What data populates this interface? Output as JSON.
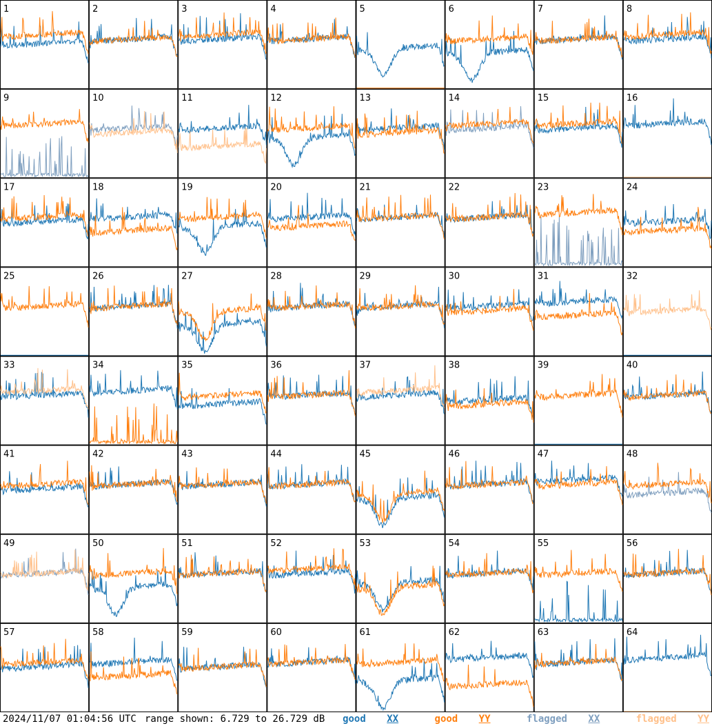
{
  "footer": {
    "timestamp": "2024/11/07 01:04:56 UTC",
    "range_text": "range shown: 6.729 to 26.729 dB",
    "legend": [
      {
        "label_a": "good ",
        "label_b": "XX",
        "color": "#1f77b4"
      },
      {
        "label_a": "good ",
        "label_b": "YY",
        "color": "#ff7f0e"
      },
      {
        "label_a": "flagged ",
        "label_b": "XX",
        "color": "#7f9fbf"
      },
      {
        "label_a": "flagged ",
        "label_b": "YY",
        "color": "#ffc08a"
      }
    ]
  },
  "chart_data": {
    "type": "line",
    "layout": "small-multiples 8x8",
    "ylim_db": [
      6.729,
      26.729
    ],
    "colors": {
      "good_xx": "#1f77b4",
      "good_yy": "#ff7f0e",
      "flagged_xx": "#7f9fbf",
      "flagged_yy": "#ffc08a"
    },
    "panels": [
      {
        "id": "1",
        "xx": "good",
        "yy": "good",
        "shape_xx": "normal",
        "shape_yy": "normal",
        "xx_level": 17,
        "yy_level": 19
      },
      {
        "id": "2",
        "xx": "good",
        "yy": "good",
        "shape_xx": "normal",
        "shape_yy": "normal",
        "xx_level": 18,
        "yy_level": 18
      },
      {
        "id": "3",
        "xx": "good",
        "yy": "good",
        "shape_xx": "normal",
        "shape_yy": "normal",
        "xx_level": 18,
        "yy_level": 19
      },
      {
        "id": "4",
        "xx": "good",
        "yy": "good",
        "shape_xx": "normal",
        "shape_yy": "normal",
        "xx_level": 18,
        "yy_level": 18
      },
      {
        "id": "5",
        "xx": "good",
        "yy": "good",
        "shape_xx": "dip",
        "shape_yy": "dead",
        "xx_level": 16,
        "yy_level": 7
      },
      {
        "id": "6",
        "xx": "good",
        "yy": "good",
        "shape_xx": "dip",
        "shape_yy": "normal",
        "xx_level": 15,
        "yy_level": 18
      },
      {
        "id": "7",
        "xx": "good",
        "yy": "good",
        "shape_xx": "normal",
        "shape_yy": "normal",
        "xx_level": 18,
        "yy_level": 18
      },
      {
        "id": "8",
        "xx": "good",
        "yy": "good",
        "shape_xx": "normal",
        "shape_yy": "normal",
        "xx_level": 18,
        "yy_level": 19
      },
      {
        "id": "9",
        "xx": "flagged",
        "yy": "good",
        "shape_xx": "spiky",
        "shape_yy": "normal",
        "xx_level": 8,
        "yy_level": 19
      },
      {
        "id": "10",
        "xx": "flagged",
        "yy": "flagged",
        "shape_xx": "normal",
        "shape_yy": "normal",
        "xx_level": 18,
        "yy_level": 17
      },
      {
        "id": "11",
        "xx": "good",
        "yy": "flagged",
        "shape_xx": "normal",
        "shape_yy": "normal",
        "xx_level": 18,
        "yy_level": 14
      },
      {
        "id": "12",
        "xx": "good",
        "yy": "good",
        "shape_xx": "dip",
        "shape_yy": "normal",
        "xx_level": 16,
        "yy_level": 18
      },
      {
        "id": "13",
        "xx": "good",
        "yy": "good",
        "shape_xx": "normal",
        "shape_yy": "normal",
        "xx_level": 18,
        "yy_level": 17
      },
      {
        "id": "14",
        "xx": "flagged",
        "yy": "good",
        "shape_xx": "normal",
        "shape_yy": "normal",
        "xx_level": 18,
        "yy_level": 19
      },
      {
        "id": "15",
        "xx": "good",
        "yy": "good",
        "shape_xx": "normal",
        "shape_yy": "normal",
        "xx_level": 18,
        "yy_level": 19
      },
      {
        "id": "16",
        "xx": "good",
        "yy": "flagged",
        "shape_xx": "normal",
        "shape_yy": "dead",
        "xx_level": 19,
        "yy_level": 7
      },
      {
        "id": "17",
        "xx": "good",
        "yy": "good",
        "shape_xx": "normal",
        "shape_yy": "normal",
        "xx_level": 17,
        "yy_level": 18
      },
      {
        "id": "18",
        "xx": "good",
        "yy": "good",
        "shape_xx": "normal",
        "shape_yy": "normal",
        "xx_level": 18,
        "yy_level": 15
      },
      {
        "id": "19",
        "xx": "good",
        "yy": "good",
        "shape_xx": "dip",
        "shape_yy": "normal",
        "xx_level": 16,
        "yy_level": 18
      },
      {
        "id": "20",
        "xx": "good",
        "yy": "good",
        "shape_xx": "normal",
        "shape_yy": "normal",
        "xx_level": 18,
        "yy_level": 16
      },
      {
        "id": "21",
        "xx": "good",
        "yy": "good",
        "shape_xx": "normal",
        "shape_yy": "normal",
        "xx_level": 18,
        "yy_level": 18
      },
      {
        "id": "22",
        "xx": "good",
        "yy": "good",
        "shape_xx": "normal",
        "shape_yy": "normal",
        "xx_level": 18,
        "yy_level": 18
      },
      {
        "id": "23",
        "xx": "flagged",
        "yy": "good",
        "shape_xx": "spiky",
        "shape_yy": "normal",
        "xx_level": 11,
        "yy_level": 19
      },
      {
        "id": "24",
        "xx": "good",
        "yy": "good",
        "shape_xx": "normal",
        "shape_yy": "normal",
        "xx_level": 17,
        "yy_level": 15
      },
      {
        "id": "25",
        "xx": "good",
        "yy": "good",
        "shape_xx": "dead",
        "shape_yy": "normal",
        "xx_level": 7,
        "yy_level": 18
      },
      {
        "id": "26",
        "xx": "good",
        "yy": "good",
        "shape_xx": "normal",
        "shape_yy": "normal",
        "xx_level": 18,
        "yy_level": 18
      },
      {
        "id": "27",
        "xx": "good",
        "yy": "good",
        "shape_xx": "dip",
        "shape_yy": "dip",
        "xx_level": 14,
        "yy_level": 17
      },
      {
        "id": "28",
        "xx": "good",
        "yy": "good",
        "shape_xx": "normal",
        "shape_yy": "normal",
        "xx_level": 18,
        "yy_level": 18
      },
      {
        "id": "29",
        "xx": "good",
        "yy": "good",
        "shape_xx": "normal",
        "shape_yy": "normal",
        "xx_level": 18,
        "yy_level": 18
      },
      {
        "id": "30",
        "xx": "good",
        "yy": "good",
        "shape_xx": "normal",
        "shape_yy": "normal",
        "xx_level": 18,
        "yy_level": 17
      },
      {
        "id": "31",
        "xx": "good",
        "yy": "good",
        "shape_xx": "normal",
        "shape_yy": "normal",
        "xx_level": 19,
        "yy_level": 16
      },
      {
        "id": "32",
        "xx": "good",
        "yy": "flagged",
        "shape_xx": "dead",
        "shape_yy": "normal",
        "xx_level": 7,
        "yy_level": 17
      },
      {
        "id": "33",
        "xx": "good",
        "yy": "flagged",
        "shape_xx": "normal",
        "shape_yy": "normal",
        "xx_level": 18,
        "yy_level": 19
      },
      {
        "id": "34",
        "xx": "good",
        "yy": "good",
        "shape_xx": "normal",
        "shape_yy": "spiky",
        "xx_level": 19,
        "yy_level": 8
      },
      {
        "id": "35",
        "xx": "good",
        "yy": "good",
        "shape_xx": "normal",
        "shape_yy": "normal",
        "xx_level": 16,
        "yy_level": 18
      },
      {
        "id": "36",
        "xx": "good",
        "yy": "good",
        "shape_xx": "normal",
        "shape_yy": "normal",
        "xx_level": 18,
        "yy_level": 18
      },
      {
        "id": "37",
        "xx": "good",
        "yy": "flagged",
        "shape_xx": "normal",
        "shape_yy": "normal",
        "xx_level": 18,
        "yy_level": 19
      },
      {
        "id": "38",
        "xx": "good",
        "yy": "good",
        "shape_xx": "normal",
        "shape_yy": "normal",
        "xx_level": 17,
        "yy_level": 16
      },
      {
        "id": "39",
        "xx": "good",
        "yy": "good",
        "shape_xx": "dead",
        "shape_yy": "normal",
        "xx_level": 7,
        "yy_level": 18
      },
      {
        "id": "40",
        "xx": "good",
        "yy": "good",
        "shape_xx": "normal",
        "shape_yy": "normal",
        "xx_level": 18,
        "yy_level": 18
      },
      {
        "id": "41",
        "xx": "good",
        "yy": "good",
        "shape_xx": "normal",
        "shape_yy": "normal",
        "xx_level": 17,
        "yy_level": 18
      },
      {
        "id": "42",
        "xx": "good",
        "yy": "good",
        "shape_xx": "normal",
        "shape_yy": "normal",
        "xx_level": 18,
        "yy_level": 18
      },
      {
        "id": "43",
        "xx": "good",
        "yy": "good",
        "shape_xx": "normal",
        "shape_yy": "normal",
        "xx_level": 18,
        "yy_level": 18
      },
      {
        "id": "44",
        "xx": "good",
        "yy": "good",
        "shape_xx": "normal",
        "shape_yy": "normal",
        "xx_level": 18,
        "yy_level": 18
      },
      {
        "id": "45",
        "xx": "good",
        "yy": "good",
        "shape_xx": "dip",
        "shape_yy": "dip",
        "xx_level": 15,
        "yy_level": 16
      },
      {
        "id": "46",
        "xx": "good",
        "yy": "good",
        "shape_xx": "normal",
        "shape_yy": "normal",
        "xx_level": 18,
        "yy_level": 18
      },
      {
        "id": "47",
        "xx": "good",
        "yy": "good",
        "shape_xx": "normal",
        "shape_yy": "normal",
        "xx_level": 19,
        "yy_level": 18
      },
      {
        "id": "48",
        "xx": "flagged",
        "yy": "good",
        "shape_xx": "normal",
        "shape_yy": "normal",
        "xx_level": 16,
        "yy_level": 18
      },
      {
        "id": "49",
        "xx": "flagged",
        "yy": "flagged",
        "shape_xx": "normal",
        "shape_yy": "normal",
        "xx_level": 18,
        "yy_level": 18
      },
      {
        "id": "50",
        "xx": "good",
        "yy": "good",
        "shape_xx": "dip",
        "shape_yy": "normal",
        "xx_level": 15,
        "yy_level": 18
      },
      {
        "id": "51",
        "xx": "good",
        "yy": "good",
        "shape_xx": "normal",
        "shape_yy": "normal",
        "xx_level": 18,
        "yy_level": 18
      },
      {
        "id": "52",
        "xx": "good",
        "yy": "good",
        "shape_xx": "normal",
        "shape_yy": "normal",
        "xx_level": 18,
        "yy_level": 19
      },
      {
        "id": "53",
        "xx": "good",
        "yy": "good",
        "shape_xx": "dip",
        "shape_yy": "dip",
        "xx_level": 16,
        "yy_level": 15
      },
      {
        "id": "54",
        "xx": "good",
        "yy": "good",
        "shape_xx": "normal",
        "shape_yy": "normal",
        "xx_level": 18,
        "yy_level": 18
      },
      {
        "id": "55",
        "xx": "good",
        "yy": "good",
        "shape_xx": "spiky",
        "shape_yy": "normal",
        "xx_level": 8,
        "yy_level": 18
      },
      {
        "id": "56",
        "xx": "good",
        "yy": "good",
        "shape_xx": "normal",
        "shape_yy": "normal",
        "xx_level": 18,
        "yy_level": 18
      },
      {
        "id": "57",
        "xx": "good",
        "yy": "good",
        "shape_xx": "normal",
        "shape_yy": "normal",
        "xx_level": 17,
        "yy_level": 18
      },
      {
        "id": "58",
        "xx": "good",
        "yy": "good",
        "shape_xx": "normal",
        "shape_yy": "normal",
        "xx_level": 18,
        "yy_level": 15
      },
      {
        "id": "59",
        "xx": "good",
        "yy": "good",
        "shape_xx": "normal",
        "shape_yy": "normal",
        "xx_level": 17,
        "yy_level": 17
      },
      {
        "id": "60",
        "xx": "good",
        "yy": "good",
        "shape_xx": "normal",
        "shape_yy": "normal",
        "xx_level": 18,
        "yy_level": 18
      },
      {
        "id": "61",
        "xx": "good",
        "yy": "good",
        "shape_xx": "dip",
        "shape_yy": "normal",
        "xx_level": 14,
        "yy_level": 18
      },
      {
        "id": "62",
        "xx": "good",
        "yy": "good",
        "shape_xx": "normal",
        "shape_yy": "normal",
        "xx_level": 19,
        "yy_level": 13
      },
      {
        "id": "63",
        "xx": "good",
        "yy": "good",
        "shape_xx": "normal",
        "shape_yy": "normal",
        "xx_level": 18,
        "yy_level": 18
      },
      {
        "id": "64",
        "xx": "good",
        "yy": "flagged",
        "shape_xx": "normal",
        "shape_yy": "dead",
        "xx_level": 19,
        "yy_level": 7
      }
    ]
  }
}
